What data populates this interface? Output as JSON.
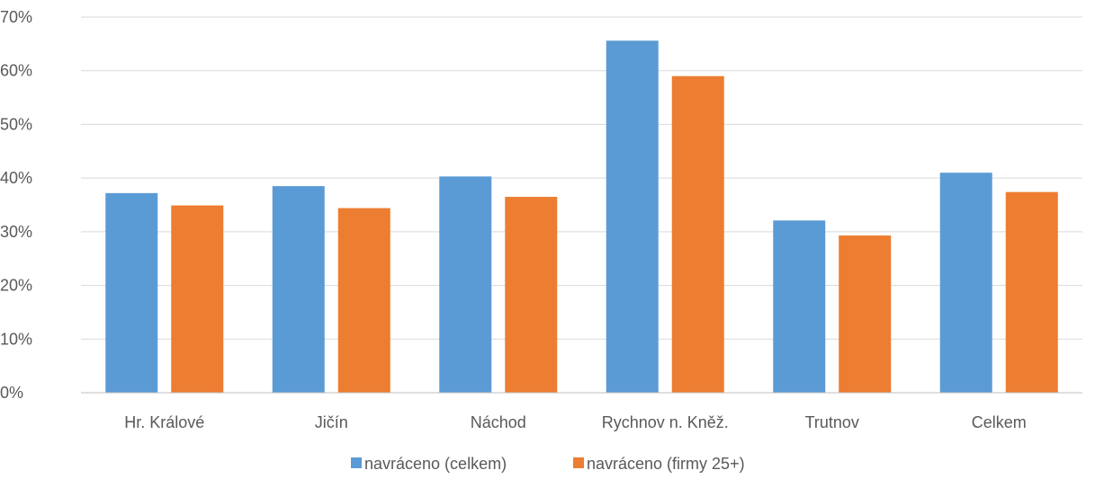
{
  "chart_data": {
    "type": "bar",
    "categories": [
      "Hr. Králové",
      "Jičín",
      "Náchod",
      "Rychnov n. Kněž.",
      "Trutnov",
      "Celkem"
    ],
    "series": [
      {
        "name": "navráceno (celkem)",
        "color": "#5b9bd5",
        "values": [
          37.2,
          38.5,
          40.3,
          65.6,
          32.1,
          41.0
        ]
      },
      {
        "name": "navráceno (firmy 25+)",
        "color": "#ed7d31",
        "values": [
          34.9,
          34.4,
          36.5,
          59.0,
          29.3,
          37.4
        ]
      }
    ],
    "ylim": [
      0,
      70
    ],
    "yticks": [
      "0%",
      "10%",
      "20%",
      "30%",
      "40%",
      "50%",
      "60%",
      "70%"
    ],
    "grid": true,
    "legend_position": "bottom"
  }
}
